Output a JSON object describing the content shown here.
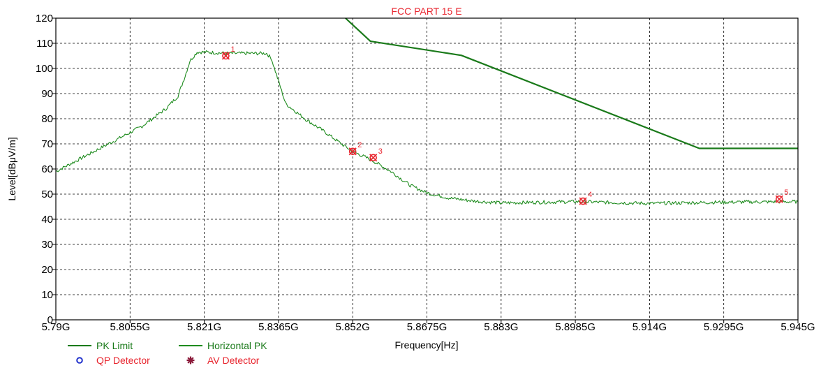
{
  "chart_data": {
    "type": "line",
    "title": "FCC PART 15 E",
    "xlabel": "Frequency[Hz]",
    "ylabel": "Level[dBμV/m]",
    "xlim": [
      5.79,
      5.945
    ],
    "ylim": [
      0,
      120
    ],
    "grid": true,
    "x_ticks": [
      5.79,
      5.8055,
      5.821,
      5.8365,
      5.852,
      5.8675,
      5.883,
      5.8985,
      5.914,
      5.9295,
      5.945
    ],
    "x_tick_labels": [
      "5.79G",
      "5.8055G",
      "5.821G",
      "5.8365G",
      "5.852G",
      "5.8675G",
      "5.883G",
      "5.8985G",
      "5.914G",
      "5.9295G",
      "5.945G"
    ],
    "y_ticks": [
      0,
      10,
      20,
      30,
      40,
      50,
      60,
      70,
      80,
      90,
      100,
      110,
      120
    ],
    "y_tick_labels": [
      "0",
      "10",
      "20",
      "30",
      "40",
      "50",
      "60",
      "70",
      "80",
      "90",
      "100",
      "110",
      "120"
    ],
    "series": [
      {
        "name": "PK Limit",
        "color": "#1a7a1a",
        "x": [
          5.8505,
          5.8557,
          5.8747,
          5.9244,
          5.945
        ],
        "y": [
          120,
          110.8,
          105.2,
          68.2,
          68.2
        ]
      },
      {
        "name": "Horizontal PK",
        "color": "#1f8c1f",
        "x": [
          5.79,
          5.796,
          5.802,
          5.808,
          5.813,
          5.8155,
          5.817,
          5.818,
          5.8195,
          5.821,
          5.826,
          5.831,
          5.834,
          5.835,
          5.8365,
          5.838,
          5.842,
          5.846,
          5.85,
          5.852,
          5.856,
          5.86,
          5.864,
          5.8675,
          5.872,
          5.877,
          5.883,
          5.8985,
          5.914,
          5.9295,
          5.945
        ],
        "y": [
          59,
          65,
          71,
          77,
          84,
          89,
          97,
          103,
          106.5,
          106.5,
          106,
          106,
          106,
          104,
          95,
          86,
          80,
          75,
          69.5,
          67,
          63.5,
          59,
          53.5,
          50.5,
          48.5,
          47.3,
          46.5,
          47,
          46.3,
          46.8,
          47
        ]
      }
    ],
    "markers": [
      {
        "label": "1",
        "x": 5.8255,
        "y": 105
      },
      {
        "label": "2",
        "x": 5.852,
        "y": 67
      },
      {
        "label": "3",
        "x": 5.8563,
        "y": 64.5
      },
      {
        "label": "4",
        "x": 5.9001,
        "y": 47.2
      },
      {
        "label": "5",
        "x": 5.9411,
        "y": 48
      }
    ],
    "legend": [
      {
        "label": "PK Limit",
        "kind": "line",
        "color": "#1a7a1a",
        "text_color": "#1a7a1a"
      },
      {
        "label": "Horizontal PK",
        "kind": "line",
        "color": "#1f8c1f",
        "text_color": "#1a7a1a"
      },
      {
        "label": "QP Detector",
        "kind": "circle",
        "color": "#2233cc",
        "text_color": "#e8262f"
      },
      {
        "label": "AV Detector",
        "kind": "star",
        "color": "#8b1a3a",
        "text_color": "#e8262f"
      }
    ],
    "legend_position": "bottom-left"
  }
}
